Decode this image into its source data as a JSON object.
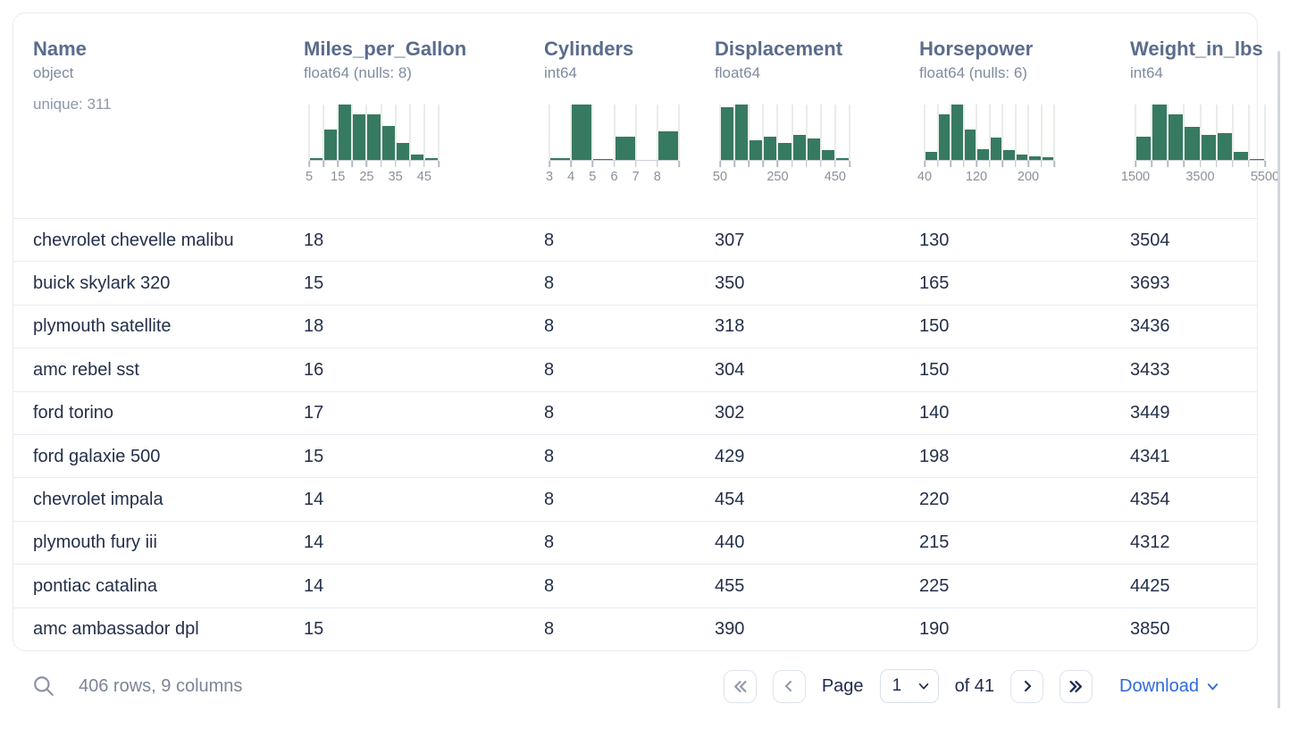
{
  "table": {
    "columns": [
      {
        "name": "Name",
        "dtype": "object",
        "extra": "unique: 311",
        "histogram": null
      },
      {
        "name": "Miles_per_Gallon",
        "dtype": "float64 (nulls: 8)",
        "histogram": {
          "bars": [
            3,
            55,
            100,
            82,
            82,
            62,
            30,
            10,
            3
          ],
          "tick_labels": [
            {
              "i": 0,
              "t": "5"
            },
            {
              "i": 2,
              "t": "15"
            },
            {
              "i": 4,
              "t": "25"
            },
            {
              "i": 6,
              "t": "35"
            },
            {
              "i": 8,
              "t": "45"
            }
          ]
        }
      },
      {
        "name": "Cylinders",
        "dtype": "int64",
        "histogram": {
          "bars": [
            4,
            100,
            2,
            42,
            0,
            52
          ],
          "tick_labels": [
            {
              "i": 0,
              "t": "3"
            },
            {
              "i": 1,
              "t": "4"
            },
            {
              "i": 2,
              "t": "5"
            },
            {
              "i": 3,
              "t": "6"
            },
            {
              "i": 4,
              "t": "7"
            },
            {
              "i": 5,
              "t": "8"
            }
          ]
        }
      },
      {
        "name": "Displacement",
        "dtype": "float64",
        "histogram": {
          "bars": [
            95,
            100,
            35,
            42,
            30,
            45,
            38,
            18,
            4
          ],
          "tick_labels": [
            {
              "i": 0,
              "t": "50"
            },
            {
              "i": 4,
              "t": "250"
            },
            {
              "i": 8,
              "t": "450"
            }
          ]
        }
      },
      {
        "name": "Horsepower",
        "dtype": "float64 (nulls: 6)",
        "histogram": {
          "bars": [
            15,
            83,
            100,
            55,
            20,
            40,
            17,
            9,
            6,
            5
          ],
          "tick_labels": [
            {
              "i": 0,
              "t": "40"
            },
            {
              "i": 4,
              "t": "120"
            },
            {
              "i": 8,
              "t": "200"
            }
          ]
        }
      },
      {
        "name": "Weight_in_lbs",
        "dtype": "int64",
        "histogram": {
          "bars": [
            42,
            100,
            82,
            60,
            45,
            48,
            15,
            2
          ],
          "tick_labels": [
            {
              "i": 0,
              "t": "1500"
            },
            {
              "i": 4,
              "t": "3500"
            },
            {
              "i": 8,
              "t": "5500"
            }
          ]
        }
      }
    ],
    "rows": [
      [
        "chevrolet chevelle malibu",
        "18",
        "8",
        "307",
        "130",
        "3504"
      ],
      [
        "buick skylark 320",
        "15",
        "8",
        "350",
        "165",
        "3693"
      ],
      [
        "plymouth satellite",
        "18",
        "8",
        "318",
        "150",
        "3436"
      ],
      [
        "amc rebel sst",
        "16",
        "8",
        "304",
        "150",
        "3433"
      ],
      [
        "ford torino",
        "17",
        "8",
        "302",
        "140",
        "3449"
      ],
      [
        "ford galaxie 500",
        "15",
        "8",
        "429",
        "198",
        "4341"
      ],
      [
        "chevrolet impala",
        "14",
        "8",
        "454",
        "220",
        "4354"
      ],
      [
        "plymouth fury iii",
        "14",
        "8",
        "440",
        "215",
        "4312"
      ],
      [
        "pontiac catalina",
        "14",
        "8",
        "455",
        "225",
        "4425"
      ],
      [
        "amc ambassador dpl",
        "15",
        "8",
        "390",
        "190",
        "3850"
      ]
    ]
  },
  "footer": {
    "summary": "406 rows, 9 columns",
    "page_label": "Page",
    "page_value": "1",
    "of_label": "of 41",
    "download_label": "Download"
  },
  "colors": {
    "histogram_bar": "#377a62",
    "link_blue": "#2e6bd9",
    "header_text": "#5a6c8c",
    "row_text": "#233049"
  }
}
